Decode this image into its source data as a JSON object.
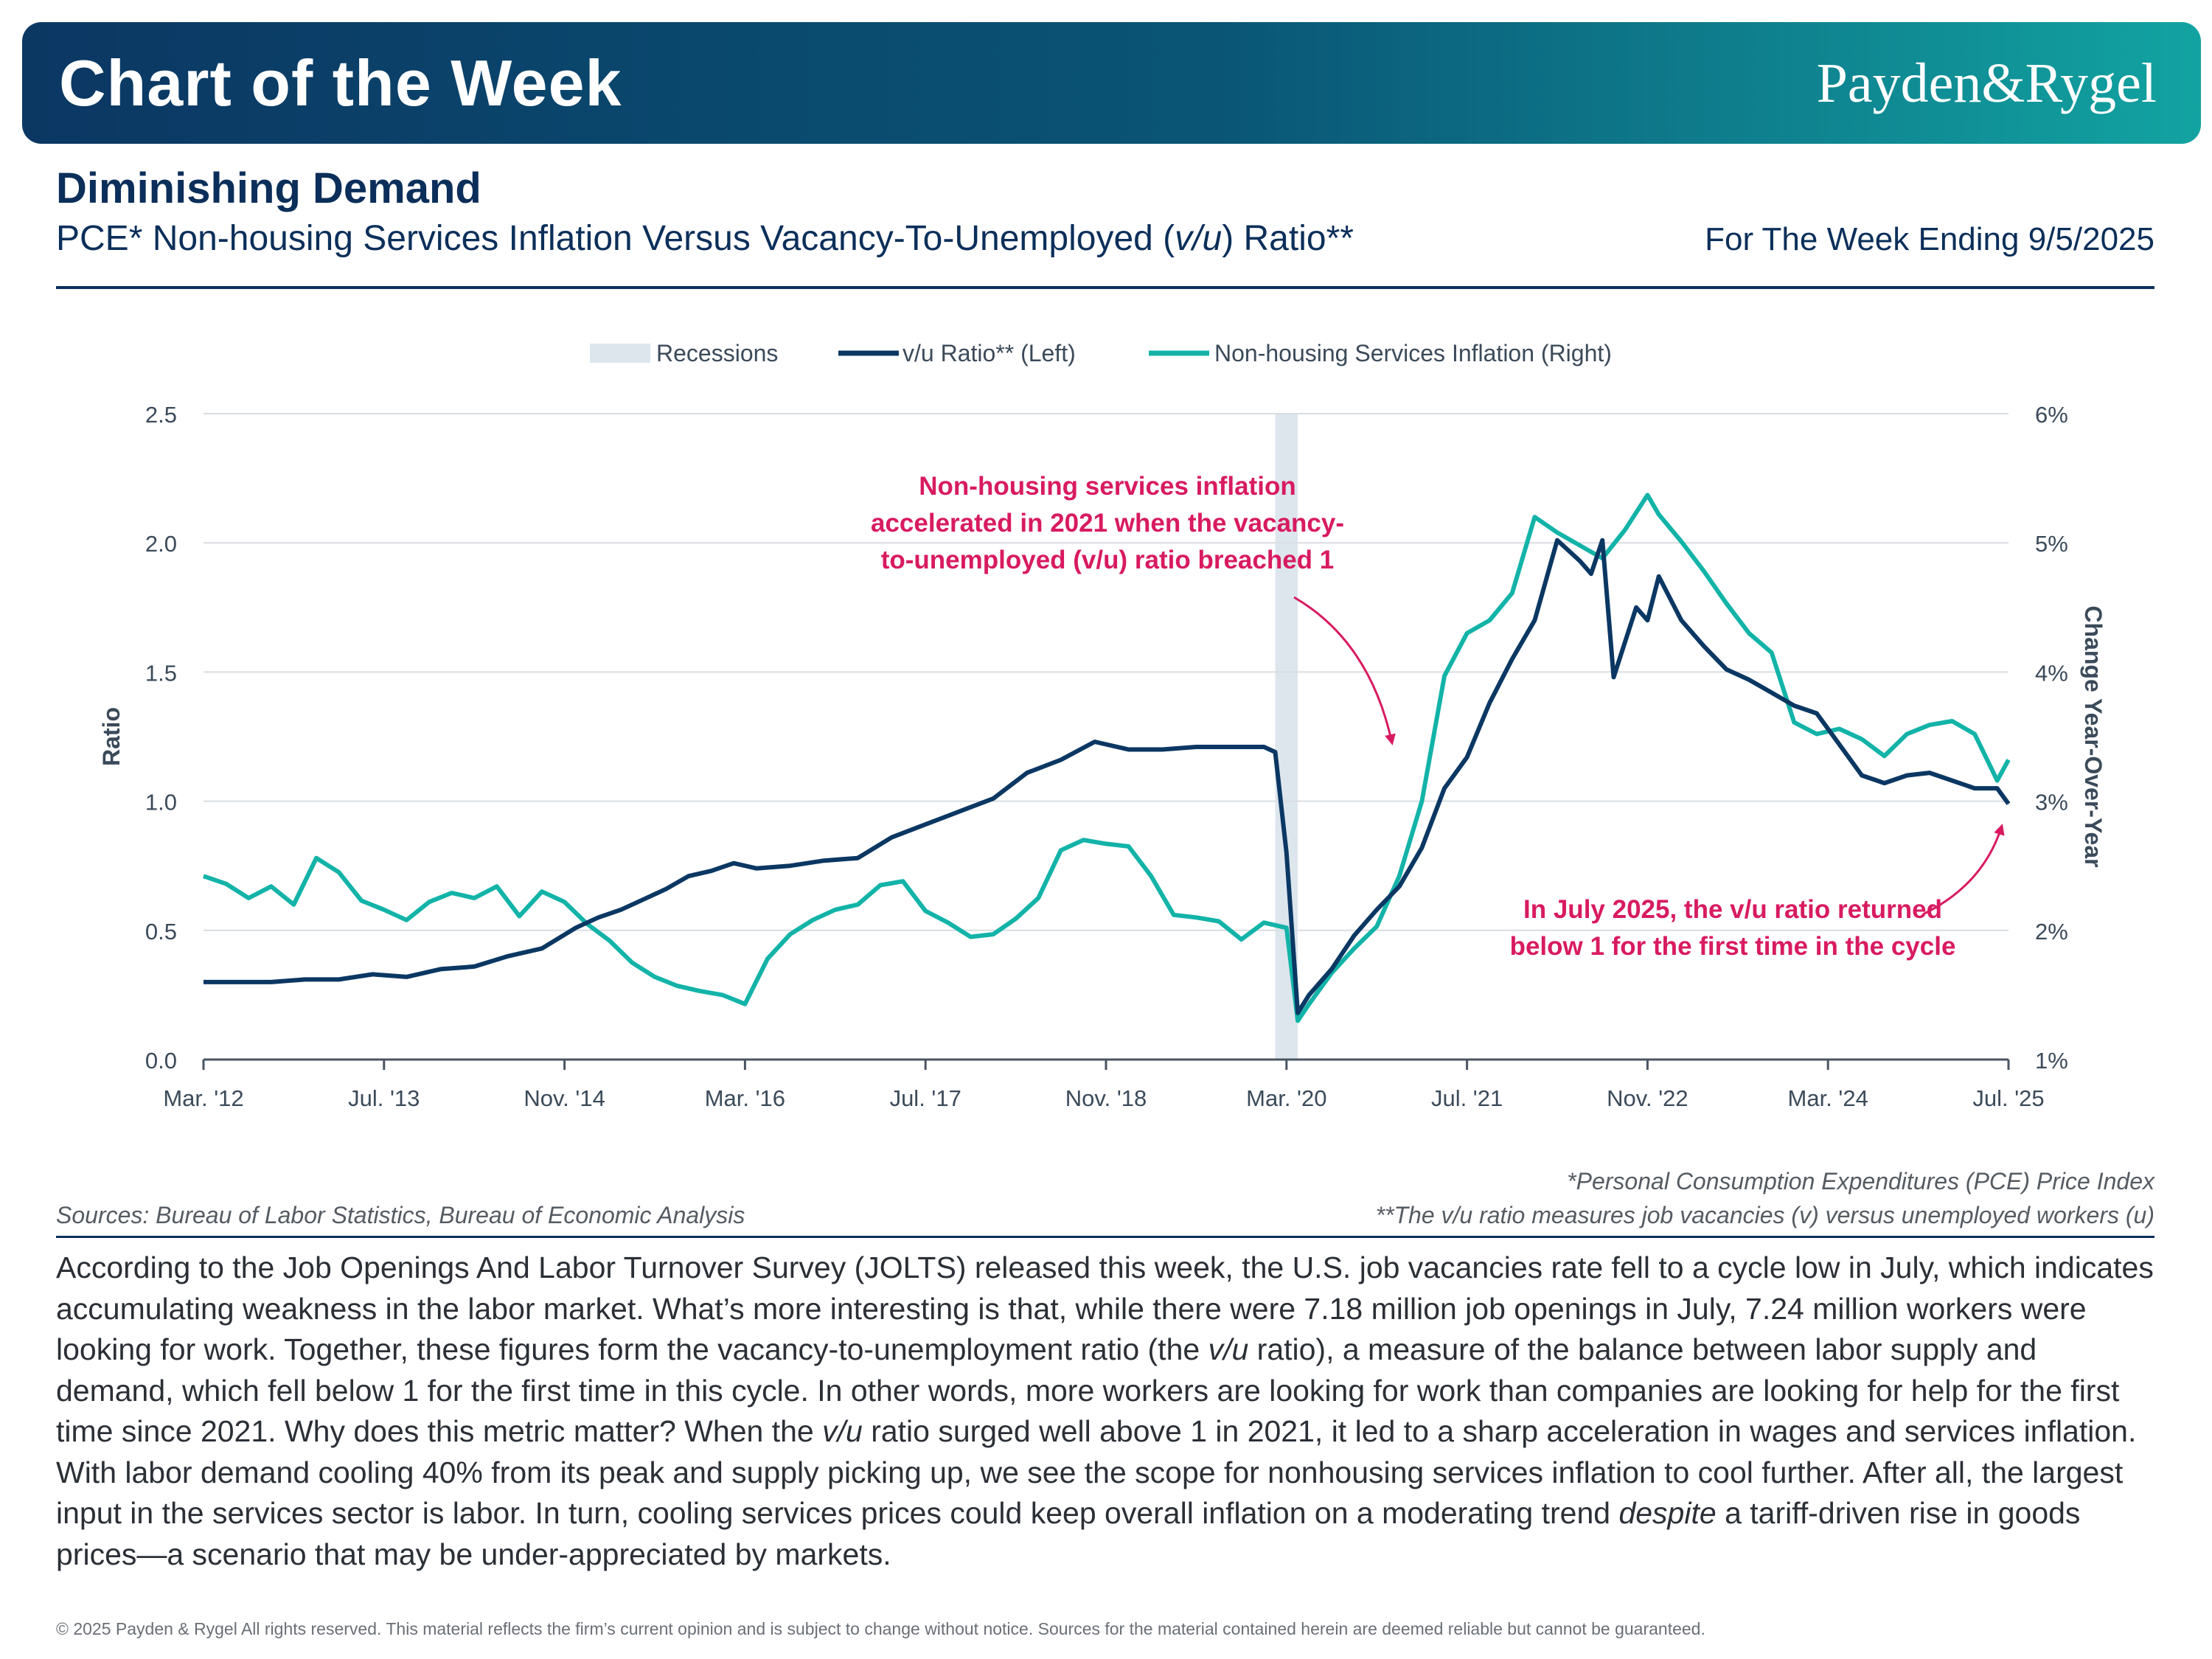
{
  "header": {
    "title": "Chart of the Week",
    "logo": "Payden&Rygel",
    "subtitle": "Diminishing Demand",
    "chart_title_pre": "PCE* Non-housing Services Inflation Versus Vacancy-To-Unemployed (",
    "chart_title_italic": "v/u",
    "chart_title_post": ") Ratio**",
    "week": "For The Week Ending 9/5/2025"
  },
  "colors": {
    "vu": "#0b3763",
    "services": "#13b3a8",
    "recession": "#dde6ed",
    "annotation": "#d81b60",
    "grid": "#d9dde2"
  },
  "chart_data": {
    "type": "line",
    "legend_position": "top",
    "grid": true,
    "ylabel": "Ratio",
    "y2label": "Change Year-Over-Year",
    "ylim": [
      0,
      2.5
    ],
    "y2lim": [
      1,
      6
    ],
    "y_ticks": [
      "0.0",
      "0.5",
      "1.0",
      "1.5",
      "2.0",
      "2.5"
    ],
    "y2_ticks": [
      "1%",
      "2%",
      "3%",
      "4%",
      "5%",
      "6%"
    ],
    "x_range": [
      "2012-03",
      "2025-07"
    ],
    "x_ticks": [
      {
        "date": "2012-03",
        "label": "Mar. '12"
      },
      {
        "date": "2013-07",
        "label": "Jul. '13"
      },
      {
        "date": "2014-11",
        "label": "Nov. '14"
      },
      {
        "date": "2016-03",
        "label": "Mar. '16"
      },
      {
        "date": "2017-07",
        "label": "Jul. '17"
      },
      {
        "date": "2018-11",
        "label": "Nov. '18"
      },
      {
        "date": "2020-03",
        "label": "Mar. '20"
      },
      {
        "date": "2021-07",
        "label": "Jul. '21"
      },
      {
        "date": "2022-11",
        "label": "Nov. '22"
      },
      {
        "date": "2024-03",
        "label": "Mar. '24"
      },
      {
        "date": "2025-07",
        "label": "Jul. '25"
      }
    ],
    "recessions": [
      {
        "name": "Recessions",
        "start": "2020-02",
        "end": "2020-04"
      }
    ],
    "legend": [
      "Recessions",
      "v/u Ratio** (Left)",
      "Non-housing Services Inflation (Right)"
    ],
    "series": [
      {
        "name": "v/u Ratio** (Left)",
        "axis": "left",
        "points": [
          [
            "2012-03",
            0.3
          ],
          [
            "2012-06",
            0.3
          ],
          [
            "2012-09",
            0.3
          ],
          [
            "2012-12",
            0.31
          ],
          [
            "2013-03",
            0.31
          ],
          [
            "2013-06",
            0.33
          ],
          [
            "2013-09",
            0.32
          ],
          [
            "2013-12",
            0.35
          ],
          [
            "2014-03",
            0.36
          ],
          [
            "2014-06",
            0.4
          ],
          [
            "2014-09",
            0.43
          ],
          [
            "2014-12",
            0.51
          ],
          [
            "2015-02",
            0.55
          ],
          [
            "2015-04",
            0.58
          ],
          [
            "2015-06",
            0.62
          ],
          [
            "2015-08",
            0.66
          ],
          [
            "2015-10",
            0.71
          ],
          [
            "2015-12",
            0.73
          ],
          [
            "2016-02",
            0.76
          ],
          [
            "2016-04",
            0.74
          ],
          [
            "2016-07",
            0.75
          ],
          [
            "2016-10",
            0.77
          ],
          [
            "2017-01",
            0.78
          ],
          [
            "2017-04",
            0.86
          ],
          [
            "2017-07",
            0.91
          ],
          [
            "2017-10",
            0.96
          ],
          [
            "2018-01",
            1.01
          ],
          [
            "2018-04",
            1.11
          ],
          [
            "2018-07",
            1.16
          ],
          [
            "2018-10",
            1.23
          ],
          [
            "2019-01",
            1.2
          ],
          [
            "2019-04",
            1.2
          ],
          [
            "2019-07",
            1.21
          ],
          [
            "2019-10",
            1.21
          ],
          [
            "2020-01",
            1.21
          ],
          [
            "2020-02",
            1.19
          ],
          [
            "2020-03",
            0.8
          ],
          [
            "2020-04",
            0.18
          ],
          [
            "2020-05",
            0.25
          ],
          [
            "2020-07",
            0.35
          ],
          [
            "2020-09",
            0.48
          ],
          [
            "2020-11",
            0.58
          ],
          [
            "2021-01",
            0.67
          ],
          [
            "2021-03",
            0.82
          ],
          [
            "2021-05",
            1.05
          ],
          [
            "2021-07",
            1.17
          ],
          [
            "2021-09",
            1.38
          ],
          [
            "2021-11",
            1.55
          ],
          [
            "2022-01",
            1.7
          ],
          [
            "2022-03",
            2.01
          ],
          [
            "2022-05",
            1.93
          ],
          [
            "2022-06",
            1.88
          ],
          [
            "2022-07",
            2.01
          ],
          [
            "2022-08",
            1.48
          ],
          [
            "2022-10",
            1.75
          ],
          [
            "2022-11",
            1.7
          ],
          [
            "2022-12",
            1.87
          ],
          [
            "2023-02",
            1.7
          ],
          [
            "2023-04",
            1.6
          ],
          [
            "2023-06",
            1.51
          ],
          [
            "2023-08",
            1.47
          ],
          [
            "2023-10",
            1.42
          ],
          [
            "2023-12",
            1.37
          ],
          [
            "2024-02",
            1.34
          ],
          [
            "2024-04",
            1.22
          ],
          [
            "2024-06",
            1.1
          ],
          [
            "2024-08",
            1.07
          ],
          [
            "2024-10",
            1.1
          ],
          [
            "2024-12",
            1.11
          ],
          [
            "2025-02",
            1.08
          ],
          [
            "2025-04",
            1.05
          ],
          [
            "2025-06",
            1.05
          ],
          [
            "2025-07",
            0.99
          ]
        ]
      },
      {
        "name": "Non-housing Services Inflation (Right)",
        "axis": "right",
        "points": [
          [
            "2012-03",
            2.42
          ],
          [
            "2012-05",
            2.36
          ],
          [
            "2012-07",
            2.25
          ],
          [
            "2012-09",
            2.34
          ],
          [
            "2012-11",
            2.2
          ],
          [
            "2013-01",
            2.56
          ],
          [
            "2013-03",
            2.45
          ],
          [
            "2013-05",
            2.23
          ],
          [
            "2013-07",
            2.16
          ],
          [
            "2013-09",
            2.08
          ],
          [
            "2013-11",
            2.22
          ],
          [
            "2014-01",
            2.29
          ],
          [
            "2014-03",
            2.25
          ],
          [
            "2014-05",
            2.34
          ],
          [
            "2014-07",
            2.11
          ],
          [
            "2014-09",
            2.3
          ],
          [
            "2014-11",
            2.22
          ],
          [
            "2015-01",
            2.05
          ],
          [
            "2015-03",
            1.92
          ],
          [
            "2015-05",
            1.75
          ],
          [
            "2015-07",
            1.64
          ],
          [
            "2015-09",
            1.57
          ],
          [
            "2015-11",
            1.53
          ],
          [
            "2016-01",
            1.5
          ],
          [
            "2016-03",
            1.43
          ],
          [
            "2016-05",
            1.78
          ],
          [
            "2016-07",
            1.97
          ],
          [
            "2016-09",
            2.08
          ],
          [
            "2016-11",
            2.16
          ],
          [
            "2017-01",
            2.2
          ],
          [
            "2017-03",
            2.35
          ],
          [
            "2017-05",
            2.38
          ],
          [
            "2017-07",
            2.15
          ],
          [
            "2017-09",
            2.06
          ],
          [
            "2017-11",
            1.95
          ],
          [
            "2018-01",
            1.97
          ],
          [
            "2018-03",
            2.09
          ],
          [
            "2018-05",
            2.25
          ],
          [
            "2018-07",
            2.62
          ],
          [
            "2018-09",
            2.7
          ],
          [
            "2018-11",
            2.67
          ],
          [
            "2019-01",
            2.65
          ],
          [
            "2019-03",
            2.42
          ],
          [
            "2019-05",
            2.12
          ],
          [
            "2019-07",
            2.1
          ],
          [
            "2019-09",
            2.07
          ],
          [
            "2019-11",
            1.93
          ],
          [
            "2020-01",
            2.06
          ],
          [
            "2020-03",
            2.02
          ],
          [
            "2020-04",
            1.3
          ],
          [
            "2020-05",
            1.43
          ],
          [
            "2020-07",
            1.67
          ],
          [
            "2020-09",
            1.86
          ],
          [
            "2020-11",
            2.03
          ],
          [
            "2021-01",
            2.42
          ],
          [
            "2021-03",
            3.0
          ],
          [
            "2021-05",
            3.97
          ],
          [
            "2021-07",
            4.3
          ],
          [
            "2021-09",
            4.4
          ],
          [
            "2021-11",
            4.61
          ],
          [
            "2022-01",
            5.2
          ],
          [
            "2022-03",
            5.08
          ],
          [
            "2022-05",
            4.98
          ],
          [
            "2022-07",
            4.88
          ],
          [
            "2022-09",
            5.1
          ],
          [
            "2022-11",
            5.37
          ],
          [
            "2022-12",
            5.22
          ],
          [
            "2023-02",
            5.01
          ],
          [
            "2023-04",
            4.78
          ],
          [
            "2023-06",
            4.53
          ],
          [
            "2023-08",
            4.3
          ],
          [
            "2023-10",
            4.15
          ],
          [
            "2023-12",
            3.61
          ],
          [
            "2024-02",
            3.52
          ],
          [
            "2024-04",
            3.56
          ],
          [
            "2024-06",
            3.48
          ],
          [
            "2024-08",
            3.35
          ],
          [
            "2024-10",
            3.52
          ],
          [
            "2024-12",
            3.59
          ],
          [
            "2025-02",
            3.62
          ],
          [
            "2025-04",
            3.52
          ],
          [
            "2025-06",
            3.16
          ],
          [
            "2025-07",
            3.32
          ]
        ]
      }
    ],
    "annotations": [
      {
        "lines": [
          "Non-housing services inflation",
          "accelerated in 2021 when the vacancy-",
          "to-unemployed (v/u) ratio breached 1"
        ]
      },
      {
        "lines": [
          "In July 2025, the v/u ratio returned",
          "below 1 for the first time in the cycle"
        ]
      }
    ]
  },
  "footnotes": {
    "pce": "*Personal Consumption Expenditures (PCE) Price Index",
    "vu": "**The v/u ratio measures job vacancies (v) versus unemployed workers (u)",
    "sources": "Sources: Bureau of Labor Statistics, Bureau of Economic Analysis"
  },
  "body": {
    "p1": "According to the Job Openings And Labor Turnover Survey (JOLTS) released this week, the U.S. job vacancies rate fell to a cycle low in July, which indicates accumulating weakness in the labor market. What’s more interesting is that, while there were 7.18 million job openings in July, 7.24 million workers were looking for work. Together, these figures form the vacancy-to-unemployment ratio (the ",
    "i1": "v/u",
    "p2": " ratio), a measure of the balance between labor supply and demand, which fell below 1 for the first time in this cycle. In other words, more workers are looking for work than companies are looking for help for the first time since 2021. Why does this metric matter? When the ",
    "i2": "v/u",
    "p3": " ratio surged well above 1 in 2021, it led to a sharp acceleration in wages and services inflation. With labor demand cooling 40% from its peak and supply picking up, we see the scope for nonhousing services inflation to cool further. After all, the largest input in the services sector is labor. In turn, cooling services prices could keep overall inflation on a moderating trend ",
    "i3": "despite",
    "p4": " a tariff-driven rise in goods prices—a scenario that may be under-appreciated by markets."
  },
  "copyright": "© 2025 Payden & Rygel All rights reserved. This material reflects the firm’s current opinion and is subject to change without notice. Sources for the material contained herein are deemed reliable but cannot be guaranteed."
}
